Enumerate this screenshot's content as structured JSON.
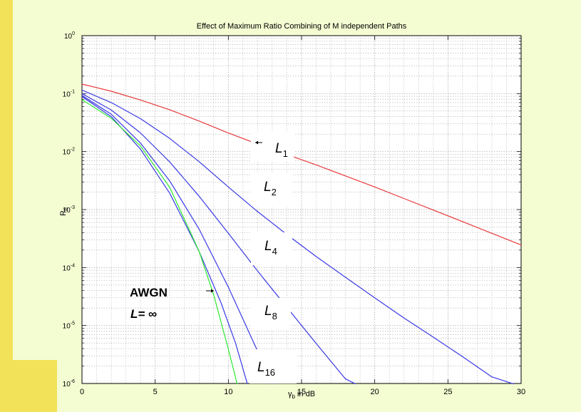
{
  "colors": {
    "slide_background": "#f4fcd2",
    "accent_bar": "#f2e25a",
    "plot_background": "#ffffff",
    "L1_curve": "#e8393a",
    "diversity_curves": "#3a3ae6",
    "awgn_curve": "#2ee82e"
  },
  "chart_data": {
    "type": "line",
    "title": "Effect of Maximum Ratio Combining of M independent Paths",
    "xlabel": "γb in dB",
    "ylabel": "Pb",
    "xlim": [
      0,
      30
    ],
    "ylim": [
      1e-06,
      1
    ],
    "y_scale": "log",
    "grid": true,
    "x_ticks": [
      "0",
      "5",
      "10",
      "15",
      "20",
      "25",
      "30"
    ],
    "y_ticks": [
      "10^0",
      "10^-1",
      "10^-2",
      "10^-3",
      "10^-4",
      "10^-5",
      "10^-6"
    ],
    "series": [
      {
        "name": "L1",
        "color": "#e8393a",
        "x": [
          0,
          2,
          4,
          6,
          8,
          10,
          12,
          14,
          16,
          18,
          20,
          22,
          24,
          26,
          28,
          30
        ],
        "y": [
          0.146,
          0.11,
          0.0775,
          0.0525,
          0.0337,
          0.0209,
          0.0135,
          0.0089,
          0.0059,
          0.0038,
          0.00245,
          0.00155,
          0.00098,
          0.00062,
          0.00039,
          0.000245
        ]
      },
      {
        "name": "L2",
        "color": "#3a3ae6",
        "x": [
          0,
          2,
          4,
          6,
          8,
          10,
          12,
          14,
          16,
          18,
          20,
          22,
          24,
          26,
          28,
          29.5
        ],
        "y": [
          0.115,
          0.07,
          0.037,
          0.0168,
          0.0067,
          0.00245,
          0.00092,
          0.00037,
          0.000155,
          6.8e-05,
          3e-05,
          1.35e-05,
          6.3e-06,
          2.9e-06,
          1.3e-06,
          9.8e-07
        ]
      },
      {
        "name": "L4",
        "color": "#3a3ae6",
        "x": [
          0,
          2,
          4,
          6,
          8,
          10,
          12,
          14,
          16,
          18,
          18.7
        ],
        "y": [
          0.1,
          0.052,
          0.021,
          0.0066,
          0.0017,
          0.00039,
          8.7e-05,
          2.05e-05,
          4.9e-06,
          1.2e-06,
          9.8e-07
        ]
      },
      {
        "name": "L8",
        "color": "#3a3ae6",
        "x": [
          0,
          2,
          4,
          6,
          8,
          10,
          11.5,
          12.5,
          13
        ],
        "y": [
          0.093,
          0.044,
          0.014,
          0.0031,
          0.00046,
          4.6e-05,
          6.8e-06,
          1.9e-06,
          9.8e-07
        ]
      },
      {
        "name": "L16",
        "color": "#3a3ae6",
        "x": [
          0,
          2,
          4,
          6,
          8,
          9.5,
          10.5,
          11.3
        ],
        "y": [
          0.089,
          0.04,
          0.011,
          0.0019,
          0.00019,
          2.45e-05,
          4.9e-06,
          9.8e-07
        ]
      },
      {
        "name": "AWGN",
        "color": "#2ee82e",
        "x": [
          0,
          2,
          4,
          6,
          8,
          9,
          10,
          10.6
        ],
        "y": [
          0.0787,
          0.0375,
          0.0125,
          0.0024,
          0.000191,
          3.36e-05,
          3.9e-06,
          9.8e-07
        ]
      }
    ],
    "annotations": [
      {
        "text": "L",
        "sub": "1"
      },
      {
        "text": "L",
        "sub": "2"
      },
      {
        "text": "L",
        "sub": "4"
      },
      {
        "text": "L",
        "sub": "8"
      },
      {
        "text": "L",
        "sub": "16"
      },
      {
        "text": "AWGN"
      },
      {
        "text": "L= ∞"
      }
    ]
  }
}
